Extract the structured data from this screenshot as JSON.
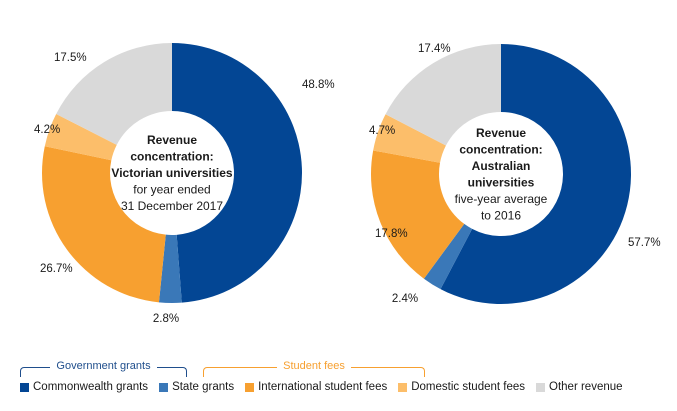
{
  "chart_data": [
    {
      "type": "pie",
      "variant": "donut",
      "center_title": [
        "Revenue",
        "concentration:",
        "Victorian universities"
      ],
      "center_subtitle": [
        "for year ended",
        "31 December 2017"
      ],
      "slices": [
        {
          "name": "Commonwealth grants",
          "value": 48.8,
          "label": "48.8%"
        },
        {
          "name": "State grants",
          "value": 2.8,
          "label": "2.8%"
        },
        {
          "name": "International student fees",
          "value": 26.7,
          "label": "26.7%"
        },
        {
          "name": "Domestic student fees",
          "value": 4.2,
          "label": "4.2%"
        },
        {
          "name": "Other revenue",
          "value": 17.5,
          "label": "17.5%"
        }
      ]
    },
    {
      "type": "pie",
      "variant": "donut",
      "center_title": [
        "Revenue",
        "concentration:",
        "Australian",
        "universities"
      ],
      "center_subtitle": [
        "five-year average",
        "to 2016"
      ],
      "slices": [
        {
          "name": "Commonwealth grants",
          "value": 57.7,
          "label": "57.7%"
        },
        {
          "name": "State grants",
          "value": 2.4,
          "label": "2.4%"
        },
        {
          "name": "International student fees",
          "value": 17.8,
          "label": "17.8%"
        },
        {
          "name": "Domestic student fees",
          "value": 4.7,
          "label": "4.7%"
        },
        {
          "name": "Other revenue",
          "value": 17.4,
          "label": "17.4%"
        }
      ]
    }
  ],
  "legend": {
    "groups": [
      {
        "label": "Government grants",
        "color": "#1f4e8c"
      },
      {
        "label": "Student fees",
        "color": "#f7a030"
      }
    ],
    "items": [
      {
        "label": "Commonwealth grants",
        "color": "#034694"
      },
      {
        "label": "State grants",
        "color": "#3a78b8"
      },
      {
        "label": "International student fees",
        "color": "#f7a030"
      },
      {
        "label": "Domestic student fees",
        "color": "#fcbe6a"
      },
      {
        "label": "Other revenue",
        "color": "#d9d9d9"
      }
    ]
  }
}
